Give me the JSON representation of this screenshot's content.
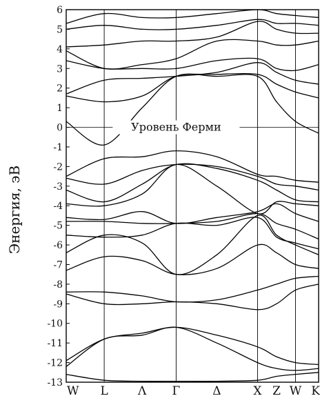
{
  "chart_data": {
    "type": "line",
    "title": "",
    "ylabel": "Энергия, эВ",
    "xlabel": "",
    "ylim": [
      -13,
      6
    ],
    "y_ticks": [
      -13,
      -12,
      -11,
      -10,
      -9,
      -8,
      -7,
      -6,
      -5,
      -4,
      -3,
      -2,
      -1,
      0,
      1,
      2,
      3,
      4,
      5,
      6
    ],
    "x_ticks": [
      "W",
      "L",
      "Λ",
      "Γ",
      "Δ",
      "X",
      "Z",
      "W",
      "K"
    ],
    "x_positions": [
      0,
      0.56,
      1.12,
      1.62,
      2.22,
      2.82,
      3.1,
      3.38,
      3.72
    ],
    "symmetry_lines": [
      "L",
      "Γ",
      "X",
      "W"
    ],
    "fermi_label": "Уровень Ферми",
    "fermi_level": 0,
    "series": [
      {
        "values": [
          -12.6,
          -12.9,
          -12.95,
          -12.95,
          -12.95,
          -12.9,
          -12.7,
          -12.6,
          -12.5
        ]
      },
      {
        "values": [
          -12.2,
          -10.8,
          -10.6,
          -10.2,
          -11.0,
          -12.0,
          -12.3,
          -12.4,
          -12.3
        ]
      },
      {
        "values": [
          -11.9,
          -10.8,
          -10.5,
          -10.2,
          -10.6,
          -11.2,
          -11.7,
          -12.0,
          -12.1
        ]
      },
      {
        "values": [
          -8.4,
          -8.4,
          -8.6,
          -8.9,
          -8.8,
          -8.3,
          -8.0,
          -7.7,
          -7.6
        ]
      },
      {
        "values": [
          -8.5,
          -9.0,
          -9.0,
          -8.9,
          -9.0,
          -9.3,
          -9.0,
          -8.3,
          -8.0
        ]
      },
      {
        "values": [
          -7.3,
          -6.6,
          -6.8,
          -7.5,
          -7.2,
          -6.0,
          -6.4,
          -7.0,
          -7.2
        ]
      },
      {
        "values": [
          -6.4,
          -5.5,
          -5.9,
          -7.5,
          -6.5,
          -4.5,
          -5.5,
          -6.0,
          -6.5
        ]
      },
      {
        "values": [
          -5.5,
          -5.6,
          -5.5,
          -4.9,
          -5.0,
          -4.6,
          -5.6,
          -5.9,
          -6.2
        ]
      },
      {
        "values": [
          -4.8,
          -4.8,
          -4.9,
          -4.9,
          -4.8,
          -4.4,
          -4.9,
          -5.2,
          -5.7
        ]
      },
      {
        "values": [
          -4.6,
          -4.7,
          -4.3,
          -4.9,
          -4.6,
          -4.3,
          -3.9,
          -4.4,
          -4.8
        ]
      },
      {
        "values": [
          -3.9,
          -4.0,
          -3.4,
          -1.9,
          -3.0,
          -4.4,
          -3.8,
          -3.9,
          -4.0
        ]
      },
      {
        "values": [
          -3.2,
          -3.8,
          -2.9,
          -1.9,
          -2.1,
          -2.7,
          -3.2,
          -3.7,
          -3.8
        ]
      },
      {
        "values": [
          -2.6,
          -2.9,
          -2.2,
          -1.9,
          -2.0,
          -2.5,
          -2.9,
          -3.0,
          -3.2
        ]
      },
      {
        "values": [
          -2.5,
          -1.6,
          -1.5,
          -1.2,
          -1.5,
          -2.4,
          -2.5,
          -2.7,
          -2.8
        ]
      },
      {
        "values": [
          0.3,
          -0.9,
          1.0,
          2.6,
          2.6,
          2.6,
          1.3,
          0.3,
          -0.3
        ]
      },
      {
        "values": [
          1.6,
          1.3,
          1.6,
          2.6,
          2.7,
          2.7,
          2.2,
          1.8,
          1.5
        ]
      },
      {
        "values": [
          1.7,
          2.4,
          2.5,
          2.6,
          2.8,
          3.3,
          2.8,
          2.4,
          2.2
        ]
      },
      {
        "values": [
          3.4,
          3.0,
          3.0,
          3.0,
          3.4,
          3.5,
          3.0,
          2.9,
          3.2
        ]
      },
      {
        "values": [
          3.9,
          3.0,
          3.2,
          3.5,
          4.4,
          4.4,
          4.2,
          4.2,
          4.4
        ]
      },
      {
        "values": [
          4.1,
          4.2,
          4.4,
          4.4,
          4.6,
          5.4,
          5.0,
          4.8,
          4.8
        ]
      },
      {
        "values": [
          5.0,
          5.2,
          5.0,
          5.0,
          5.2,
          5.5,
          5.3,
          5.3,
          5.2
        ]
      },
      {
        "values": [
          5.3,
          5.8,
          5.6,
          5.6,
          5.8,
          6.0,
          5.8,
          5.7,
          5.6
        ]
      }
    ]
  }
}
